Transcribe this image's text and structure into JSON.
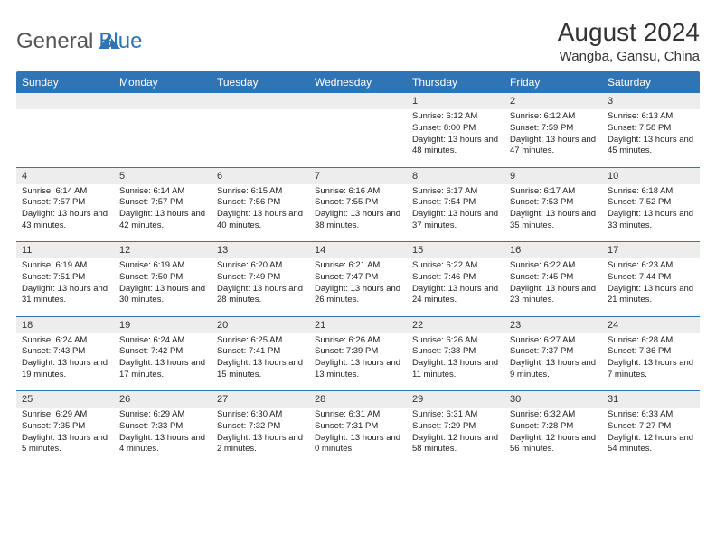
{
  "brand": {
    "name1": "General",
    "name2": "Blue",
    "icon_color": "#2f74b5"
  },
  "title": "August 2024",
  "location": "Wangba, Gansu, China",
  "colors": {
    "header_bg": "#2f74b5",
    "header_text": "#ffffff",
    "daynum_bg": "#ededed",
    "rule": "#2f74b5",
    "text": "#222222"
  },
  "days_of_week": [
    "Sunday",
    "Monday",
    "Tuesday",
    "Wednesday",
    "Thursday",
    "Friday",
    "Saturday"
  ],
  "weeks": [
    [
      null,
      null,
      null,
      null,
      {
        "n": "1",
        "sr": "6:12 AM",
        "ss": "8:00 PM",
        "dl": "13 hours and 48 minutes."
      },
      {
        "n": "2",
        "sr": "6:12 AM",
        "ss": "7:59 PM",
        "dl": "13 hours and 47 minutes."
      },
      {
        "n": "3",
        "sr": "6:13 AM",
        "ss": "7:58 PM",
        "dl": "13 hours and 45 minutes."
      }
    ],
    [
      {
        "n": "4",
        "sr": "6:14 AM",
        "ss": "7:57 PM",
        "dl": "13 hours and 43 minutes."
      },
      {
        "n": "5",
        "sr": "6:14 AM",
        "ss": "7:57 PM",
        "dl": "13 hours and 42 minutes."
      },
      {
        "n": "6",
        "sr": "6:15 AM",
        "ss": "7:56 PM",
        "dl": "13 hours and 40 minutes."
      },
      {
        "n": "7",
        "sr": "6:16 AM",
        "ss": "7:55 PM",
        "dl": "13 hours and 38 minutes."
      },
      {
        "n": "8",
        "sr": "6:17 AM",
        "ss": "7:54 PM",
        "dl": "13 hours and 37 minutes."
      },
      {
        "n": "9",
        "sr": "6:17 AM",
        "ss": "7:53 PM",
        "dl": "13 hours and 35 minutes."
      },
      {
        "n": "10",
        "sr": "6:18 AM",
        "ss": "7:52 PM",
        "dl": "13 hours and 33 minutes."
      }
    ],
    [
      {
        "n": "11",
        "sr": "6:19 AM",
        "ss": "7:51 PM",
        "dl": "13 hours and 31 minutes."
      },
      {
        "n": "12",
        "sr": "6:19 AM",
        "ss": "7:50 PM",
        "dl": "13 hours and 30 minutes."
      },
      {
        "n": "13",
        "sr": "6:20 AM",
        "ss": "7:49 PM",
        "dl": "13 hours and 28 minutes."
      },
      {
        "n": "14",
        "sr": "6:21 AM",
        "ss": "7:47 PM",
        "dl": "13 hours and 26 minutes."
      },
      {
        "n": "15",
        "sr": "6:22 AM",
        "ss": "7:46 PM",
        "dl": "13 hours and 24 minutes."
      },
      {
        "n": "16",
        "sr": "6:22 AM",
        "ss": "7:45 PM",
        "dl": "13 hours and 23 minutes."
      },
      {
        "n": "17",
        "sr": "6:23 AM",
        "ss": "7:44 PM",
        "dl": "13 hours and 21 minutes."
      }
    ],
    [
      {
        "n": "18",
        "sr": "6:24 AM",
        "ss": "7:43 PM",
        "dl": "13 hours and 19 minutes."
      },
      {
        "n": "19",
        "sr": "6:24 AM",
        "ss": "7:42 PM",
        "dl": "13 hours and 17 minutes."
      },
      {
        "n": "20",
        "sr": "6:25 AM",
        "ss": "7:41 PM",
        "dl": "13 hours and 15 minutes."
      },
      {
        "n": "21",
        "sr": "6:26 AM",
        "ss": "7:39 PM",
        "dl": "13 hours and 13 minutes."
      },
      {
        "n": "22",
        "sr": "6:26 AM",
        "ss": "7:38 PM",
        "dl": "13 hours and 11 minutes."
      },
      {
        "n": "23",
        "sr": "6:27 AM",
        "ss": "7:37 PM",
        "dl": "13 hours and 9 minutes."
      },
      {
        "n": "24",
        "sr": "6:28 AM",
        "ss": "7:36 PM",
        "dl": "13 hours and 7 minutes."
      }
    ],
    [
      {
        "n": "25",
        "sr": "6:29 AM",
        "ss": "7:35 PM",
        "dl": "13 hours and 5 minutes."
      },
      {
        "n": "26",
        "sr": "6:29 AM",
        "ss": "7:33 PM",
        "dl": "13 hours and 4 minutes."
      },
      {
        "n": "27",
        "sr": "6:30 AM",
        "ss": "7:32 PM",
        "dl": "13 hours and 2 minutes."
      },
      {
        "n": "28",
        "sr": "6:31 AM",
        "ss": "7:31 PM",
        "dl": "13 hours and 0 minutes."
      },
      {
        "n": "29",
        "sr": "6:31 AM",
        "ss": "7:29 PM",
        "dl": "12 hours and 58 minutes."
      },
      {
        "n": "30",
        "sr": "6:32 AM",
        "ss": "7:28 PM",
        "dl": "12 hours and 56 minutes."
      },
      {
        "n": "31",
        "sr": "6:33 AM",
        "ss": "7:27 PM",
        "dl": "12 hours and 54 minutes."
      }
    ]
  ],
  "labels": {
    "sunrise": "Sunrise:",
    "sunset": "Sunset:",
    "daylight": "Daylight:"
  }
}
